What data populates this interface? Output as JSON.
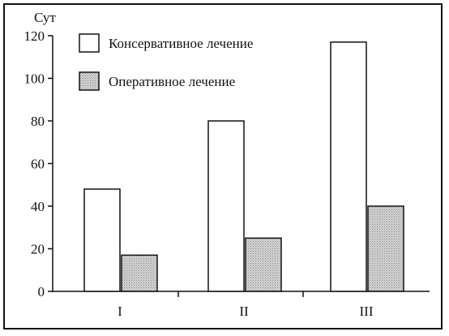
{
  "chart_data": {
    "type": "bar",
    "title": "",
    "xlabel": "",
    "ylabel": "Сут",
    "categories": [
      "I",
      "II",
      "III"
    ],
    "ylim": [
      0,
      120
    ],
    "yticks": [
      0,
      20,
      40,
      60,
      80,
      100,
      120
    ],
    "grid": false,
    "legend_position": "top-center",
    "series": [
      {
        "name": "Консервативное лечение",
        "values": [
          48,
          80,
          117
        ],
        "fill": "#ffffff",
        "pattern": "none"
      },
      {
        "name": "Оперативное лечение",
        "values": [
          17,
          25,
          40
        ],
        "fill": "#cfcfcf",
        "pattern": "dotted-gray"
      }
    ]
  }
}
